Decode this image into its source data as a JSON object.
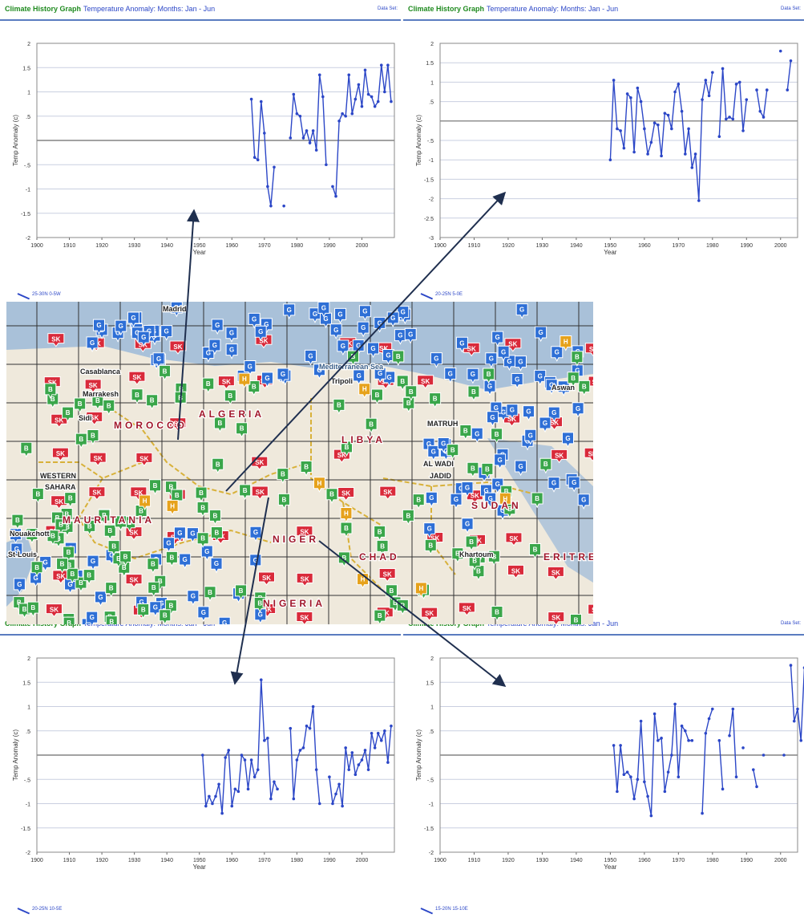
{
  "common": {
    "title": "Climate History Graph",
    "subtitle": "Temperature Anomaly: Months: Jan - Jun",
    "data_set_label": "Data Set: ",
    "line_color": "#2c47c7",
    "header_title_color": "#1f8a1f",
    "header_rule_color": "#5a7cc0"
  },
  "chart_data": [
    {
      "type": "line",
      "title": "Climate History Graph",
      "subtitle": "Temperature Anomaly: Months: Jan - Jun",
      "xlabel": "Year",
      "ylabel": "Temp Anomaly (c)",
      "xlim": [
        1900,
        2010
      ],
      "ylim": [
        -2,
        2
      ],
      "xticks": [
        "1900",
        "1910",
        "1920",
        "1930",
        "1940",
        "1950",
        "1960",
        "1970",
        "1980",
        "1990",
        "2000"
      ],
      "yticks": [
        "2",
        "1.5",
        "1",
        ".5",
        "",
        "-.5",
        "-1",
        "-1.5",
        "-2"
      ],
      "grid": true,
      "series": [
        {
          "name": "25-30N 0-5W",
          "x": [
            1966,
            1967,
            1968,
            1969,
            1970,
            1971,
            1972,
            1973,
            null,
            1976,
            null,
            1978,
            1979,
            1980,
            1981,
            1982,
            1983,
            1984,
            1985,
            1986,
            1987,
            1988,
            1989,
            null,
            1991,
            1992,
            1993,
            1994,
            1995,
            1996,
            1997,
            1998,
            1999,
            2000,
            2001,
            2002,
            2003,
            2004,
            2005,
            2006,
            2007,
            2008,
            2009
          ],
          "y": [
            0.85,
            -0.35,
            -0.4,
            0.8,
            0.15,
            -0.95,
            -1.35,
            -0.55,
            null,
            -1.35,
            null,
            0.05,
            0.95,
            0.55,
            0.5,
            0.05,
            0.2,
            -0.05,
            0.2,
            -0.2,
            1.35,
            0.9,
            -0.5,
            null,
            -0.95,
            -1.15,
            0.4,
            0.55,
            0.5,
            1.35,
            0.55,
            0.85,
            1.15,
            0.7,
            1.45,
            0.95,
            0.9,
            0.7,
            0.8,
            1.55,
            1.0,
            1.55,
            0.8
          ]
        }
      ]
    },
    {
      "type": "line",
      "title": "Climate History Graph",
      "subtitle": "Temperature Anomaly: Months: Jan - Jun",
      "xlabel": "Year",
      "ylabel": "Temp Anomaly (c)",
      "xlim": [
        1900,
        2005
      ],
      "ylim": [
        -3,
        2
      ],
      "xticks": [
        "1900",
        "1910",
        "1920",
        "1930",
        "1940",
        "1950",
        "1960",
        "1970",
        "1980",
        "1990",
        "2000"
      ],
      "yticks": [
        "2",
        "1.5",
        "1",
        ".5",
        "",
        "-.5",
        "-1",
        "-1.5",
        "-2",
        "-2.5",
        "-3"
      ],
      "grid": true,
      "series": [
        {
          "name": "20-25N 5-0E",
          "x": [
            1950,
            1951,
            1952,
            1953,
            1954,
            1955,
            1956,
            1957,
            1958,
            1959,
            1960,
            1961,
            1962,
            1963,
            1964,
            1965,
            1966,
            1967,
            1968,
            1969,
            1970,
            1971,
            1972,
            1973,
            1974,
            1975,
            1976,
            1977,
            1978,
            1979,
            1980,
            1981,
            1982,
            1983,
            1984,
            1985,
            1986,
            1987,
            1988,
            1989,
            1990,
            null,
            1993,
            1994,
            1995,
            1996,
            null,
            2000,
            null,
            2002,
            2003
          ],
          "y": [
            -1.0,
            1.05,
            -0.2,
            -0.25,
            -0.7,
            0.7,
            0.6,
            -0.8,
            0.85,
            0.5,
            -0.2,
            -0.85,
            -0.55,
            -0.05,
            -0.1,
            -0.9,
            0.2,
            0.15,
            -0.2,
            0.75,
            0.95,
            0.25,
            -0.85,
            -0.2,
            -1.2,
            -0.85,
            -2.05,
            0.55,
            1.05,
            0.65,
            1.25,
            null,
            -0.4,
            1.35,
            0.05,
            0.1,
            0.05,
            0.95,
            1.0,
            -0.25,
            0.55,
            null,
            0.8,
            0.25,
            0.1,
            0.8,
            null,
            1.8,
            null,
            0.8,
            1.55
          ]
        }
      ]
    },
    {
      "type": "line",
      "title": "Climate History Graph",
      "subtitle": "Temperature Anomaly: Months: Jan - Jun",
      "xlabel": "Year",
      "ylabel": "Temp Anomaly (c)",
      "xlim": [
        1900,
        2010
      ],
      "ylim": [
        -2,
        2
      ],
      "xticks": [
        "1900",
        "1910",
        "1920",
        "1930",
        "1940",
        "1950",
        "1960",
        "1970",
        "1980",
        "1990",
        "2000"
      ],
      "yticks": [
        "2",
        "1.5",
        "1",
        ".5",
        "",
        "-.5",
        "-1",
        "-1.5",
        "-2"
      ],
      "grid": true,
      "series": [
        {
          "name": "20-25N 10-5E",
          "x": [
            1951,
            1952,
            1953,
            1954,
            1955,
            1956,
            1957,
            1958,
            1959,
            1960,
            1961,
            1962,
            1963,
            1964,
            1965,
            1966,
            1967,
            1968,
            1969,
            1970,
            1971,
            1972,
            1973,
            1974,
            null,
            1978,
            1979,
            1980,
            1981,
            1982,
            1983,
            1984,
            1985,
            1986,
            1987,
            null,
            1990,
            1991,
            1992,
            1993,
            1994,
            1995,
            1996,
            1997,
            1998,
            1999,
            2000,
            2001,
            2002,
            2003,
            2004,
            2005,
            2006,
            2007,
            2008,
            2009
          ],
          "y": [
            0.0,
            -1.05,
            -0.85,
            -1.0,
            -0.85,
            -0.6,
            -1.2,
            -0.05,
            0.1,
            -1.05,
            -0.7,
            -0.75,
            0.0,
            -0.1,
            -0.7,
            -0.1,
            -0.45,
            -0.3,
            1.55,
            0.3,
            0.35,
            -0.9,
            -0.55,
            -0.7,
            null,
            0.55,
            -0.9,
            -0.1,
            0.1,
            0.15,
            0.6,
            0.55,
            1.0,
            -0.3,
            -1.0,
            null,
            -0.45,
            -1.0,
            -0.8,
            -0.6,
            -1.05,
            0.15,
            -0.3,
            0.05,
            -0.4,
            -0.2,
            -0.1,
            0.1,
            -0.3,
            0.45,
            0.15,
            0.45,
            0.3,
            0.5,
            -0.15,
            0.6
          ]
        }
      ]
    },
    {
      "type": "line",
      "title": "Climate History Graph",
      "subtitle": "Temperature Anomaly: Months: Jan - Jun",
      "xlabel": "Year",
      "ylabel": "Temp Anomaly (c)",
      "xlim": [
        1900,
        2005
      ],
      "ylim": [
        -2,
        2
      ],
      "xticks": [
        "1900",
        "1910",
        "1920",
        "1930",
        "1940",
        "1950",
        "1960",
        "1970",
        "1980",
        "1990",
        "2000"
      ],
      "yticks": [
        "2",
        "1.5",
        "1",
        ".5",
        "",
        "-.5",
        "-1",
        "-1.5",
        "-2"
      ],
      "grid": true,
      "series": [
        {
          "name": "15-20N 15-10E",
          "x": [
            1951,
            1952,
            1953,
            1954,
            1955,
            1956,
            1957,
            1958,
            1959,
            1960,
            1961,
            1962,
            1963,
            1964,
            1965,
            1966,
            1967,
            1968,
            1969,
            1970,
            1971,
            1972,
            1973,
            1974,
            null,
            1977,
            1978,
            1979,
            1980,
            null,
            1982,
            1983,
            null,
            1985,
            1986,
            1987,
            null,
            1989,
            null,
            1992,
            1993,
            null,
            1995,
            null,
            2001,
            null,
            2003,
            2004,
            2005,
            2006,
            2007
          ],
          "y": [
            0.2,
            -0.75,
            0.2,
            -0.4,
            -0.35,
            -0.45,
            -0.9,
            -0.5,
            0.7,
            -0.55,
            -0.85,
            -1.25,
            0.85,
            0.3,
            0.35,
            -0.75,
            -0.35,
            0.0,
            1.05,
            -0.45,
            0.6,
            0.5,
            0.3,
            0.3,
            null,
            -1.2,
            0.45,
            0.75,
            0.95,
            null,
            0.3,
            -0.7,
            null,
            0.4,
            0.95,
            -0.45,
            null,
            0.15,
            null,
            -0.3,
            -0.65,
            null,
            0.0,
            null,
            0.0,
            null,
            1.85,
            0.7,
            0.95,
            0.3,
            1.8
          ]
        }
      ]
    }
  ],
  "map": {
    "labels": [
      "Madrid",
      "Casablanca",
      "Marrakesh",
      "Sidi",
      "WESTERN",
      "SAHARA",
      "MAURITANIA",
      "Nouakchott",
      "St-Louis",
      "MOROCCO",
      "ALGERIA",
      "LIBYA",
      "Mediterranean Sea",
      "Tripoli",
      "MATRUH",
      "AL WADI",
      "JADID",
      "NIGER",
      "CHAD",
      "SUDAN",
      "Khartoum",
      "ERITREA",
      "NIGERIA",
      "Aswan"
    ],
    "colors": {
      "sea": "#a9c1d9",
      "land": "#efe9dc",
      "grid": "#333333",
      "border": "#d8b13a",
      "marker_red": "#d92a3a",
      "marker_blue": "#2e6fd6",
      "marker_green": "#3aa64a",
      "marker_orange": "#e6a21c",
      "country_text": "#a0162a"
    },
    "marker_symbols": {
      "red": "SK",
      "blue": "G",
      "green": "B",
      "orange": "H"
    }
  }
}
